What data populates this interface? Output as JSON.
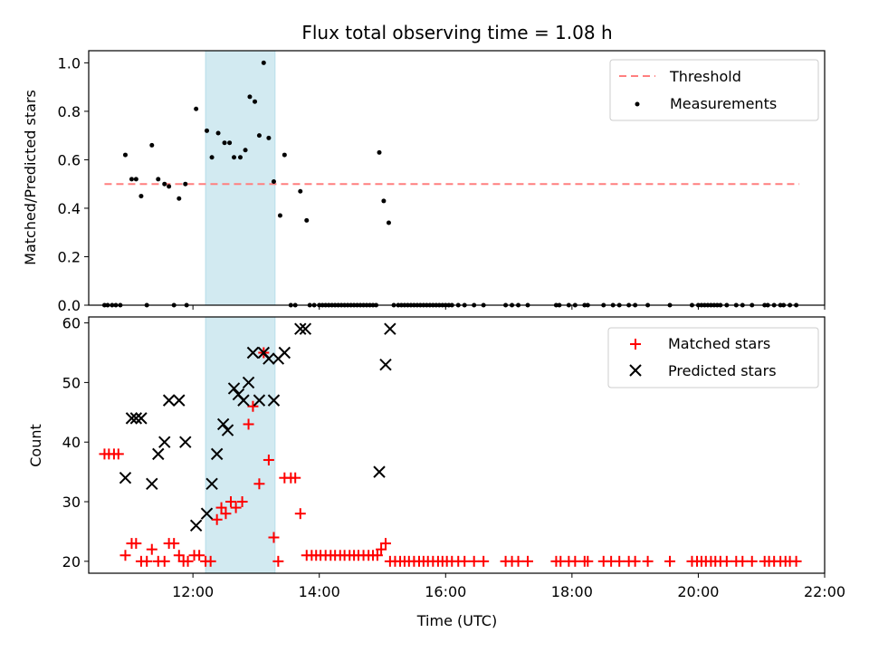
{
  "chart_data": [
    {
      "type": "scatter",
      "title": "Flux total observing time = 1.08 h",
      "xlabel": "",
      "ylabel": "Matched/Predicted stars",
      "xlim": [
        10.35,
        22.0
      ],
      "ylim": [
        0.0,
        1.05
      ],
      "yticks": [
        "0.0",
        "0.2",
        "0.4",
        "0.6",
        "0.8",
        "1.0"
      ],
      "highlight_span": [
        12.2,
        13.3
      ],
      "threshold": {
        "name": "Threshold",
        "y": 0.5,
        "x_range": [
          10.6,
          21.6
        ],
        "color": "#ff7f7f"
      },
      "measurements_name": "Measurements",
      "measurements": [
        [
          10.6,
          0
        ],
        [
          10.65,
          0
        ],
        [
          10.72,
          0
        ],
        [
          10.78,
          0
        ],
        [
          10.85,
          0
        ],
        [
          10.93,
          0.62
        ],
        [
          11.03,
          0.52
        ],
        [
          11.1,
          0.52
        ],
        [
          11.18,
          0.45
        ],
        [
          11.27,
          0
        ],
        [
          11.35,
          0.66
        ],
        [
          11.45,
          0.52
        ],
        [
          11.55,
          0.5
        ],
        [
          11.62,
          0.49
        ],
        [
          11.7,
          0
        ],
        [
          11.78,
          0.44
        ],
        [
          11.88,
          0.5
        ],
        [
          11.9,
          0
        ],
        [
          12.05,
          0.81
        ],
        [
          12.22,
          0.72
        ],
        [
          12.3,
          0.61
        ],
        [
          12.4,
          0.71
        ],
        [
          12.5,
          0.67
        ],
        [
          12.58,
          0.67
        ],
        [
          12.65,
          0.61
        ],
        [
          12.75,
          0.61
        ],
        [
          12.83,
          0.64
        ],
        [
          12.9,
          0.86
        ],
        [
          12.98,
          0.84
        ],
        [
          13.05,
          0.7
        ],
        [
          13.12,
          1.0
        ],
        [
          13.2,
          0.69
        ],
        [
          13.28,
          0.51
        ],
        [
          13.38,
          0.37
        ],
        [
          13.45,
          0.62
        ],
        [
          13.55,
          0
        ],
        [
          13.62,
          0
        ],
        [
          13.7,
          0.47
        ],
        [
          13.8,
          0.35
        ],
        [
          13.85,
          0
        ],
        [
          13.92,
          0
        ],
        [
          14.0,
          0
        ],
        [
          14.05,
          0
        ],
        [
          14.1,
          0
        ],
        [
          14.15,
          0
        ],
        [
          14.2,
          0
        ],
        [
          14.25,
          0
        ],
        [
          14.3,
          0
        ],
        [
          14.35,
          0
        ],
        [
          14.4,
          0
        ],
        [
          14.45,
          0
        ],
        [
          14.5,
          0
        ],
        [
          14.55,
          0
        ],
        [
          14.6,
          0
        ],
        [
          14.65,
          0
        ],
        [
          14.7,
          0
        ],
        [
          14.75,
          0
        ],
        [
          14.8,
          0
        ],
        [
          14.85,
          0
        ],
        [
          14.9,
          0
        ],
        [
          14.95,
          0.63
        ],
        [
          15.02,
          0.43
        ],
        [
          15.1,
          0.34
        ],
        [
          15.18,
          0
        ],
        [
          15.25,
          0
        ],
        [
          15.3,
          0
        ],
        [
          15.35,
          0
        ],
        [
          15.4,
          0
        ],
        [
          15.45,
          0
        ],
        [
          15.5,
          0
        ],
        [
          15.55,
          0
        ],
        [
          15.6,
          0
        ],
        [
          15.65,
          0
        ],
        [
          15.7,
          0
        ],
        [
          15.75,
          0
        ],
        [
          15.8,
          0
        ],
        [
          15.85,
          0
        ],
        [
          15.9,
          0
        ],
        [
          15.95,
          0
        ],
        [
          16.0,
          0
        ],
        [
          16.05,
          0
        ],
        [
          16.1,
          0
        ],
        [
          16.2,
          0
        ],
        [
          16.3,
          0
        ],
        [
          16.45,
          0
        ],
        [
          16.6,
          0
        ],
        [
          16.95,
          0
        ],
        [
          17.05,
          0
        ],
        [
          17.15,
          0
        ],
        [
          17.3,
          0
        ],
        [
          17.75,
          0
        ],
        [
          17.8,
          0
        ],
        [
          17.95,
          0
        ],
        [
          18.05,
          0
        ],
        [
          18.2,
          0
        ],
        [
          18.25,
          0
        ],
        [
          18.5,
          0
        ],
        [
          18.65,
          0
        ],
        [
          18.75,
          0
        ],
        [
          18.9,
          0
        ],
        [
          19.0,
          0
        ],
        [
          19.2,
          0
        ],
        [
          19.55,
          0
        ],
        [
          19.9,
          0
        ],
        [
          20.0,
          0
        ],
        [
          20.05,
          0
        ],
        [
          20.1,
          0
        ],
        [
          20.15,
          0
        ],
        [
          20.2,
          0
        ],
        [
          20.25,
          0
        ],
        [
          20.3,
          0
        ],
        [
          20.35,
          0
        ],
        [
          20.45,
          0
        ],
        [
          20.6,
          0
        ],
        [
          20.7,
          0
        ],
        [
          20.85,
          0
        ],
        [
          21.05,
          0
        ],
        [
          21.1,
          0
        ],
        [
          21.2,
          0
        ],
        [
          21.3,
          0
        ],
        [
          21.35,
          0
        ],
        [
          21.45,
          0
        ],
        [
          21.55,
          0
        ]
      ]
    },
    {
      "type": "scatter",
      "title": "",
      "xlabel": "Time (UTC)",
      "ylabel": "Count",
      "xlim": [
        10.35,
        22.0
      ],
      "ylim": [
        18.0,
        61.0
      ],
      "xticks": [
        [
          12,
          "12:00"
        ],
        [
          14,
          "14:00"
        ],
        [
          16,
          "16:00"
        ],
        [
          18,
          "18:00"
        ],
        [
          20,
          "20:00"
        ],
        [
          22,
          "22:00"
        ]
      ],
      "yticks": [
        "20",
        "30",
        "40",
        "50",
        "60"
      ],
      "highlight_span": [
        12.2,
        13.3
      ],
      "series": [
        {
          "name": "Matched stars",
          "marker": "plus",
          "color": "#ff0000",
          "points": [
            [
              10.6,
              38
            ],
            [
              10.67,
              38
            ],
            [
              10.75,
              38
            ],
            [
              10.82,
              38
            ],
            [
              10.93,
              21
            ],
            [
              11.03,
              23
            ],
            [
              11.1,
              23
            ],
            [
              11.18,
              20
            ],
            [
              11.27,
              20
            ],
            [
              11.35,
              22
            ],
            [
              11.45,
              20
            ],
            [
              11.55,
              20
            ],
            [
              11.62,
              23
            ],
            [
              11.7,
              23
            ],
            [
              11.78,
              21
            ],
            [
              11.85,
              20
            ],
            [
              11.92,
              20
            ],
            [
              12.02,
              21
            ],
            [
              12.1,
              21
            ],
            [
              12.2,
              20
            ],
            [
              12.28,
              20
            ],
            [
              12.38,
              27
            ],
            [
              12.45,
              29
            ],
            [
              12.52,
              28
            ],
            [
              12.6,
              30
            ],
            [
              12.68,
              29
            ],
            [
              12.78,
              30
            ],
            [
              12.88,
              43
            ],
            [
              12.95,
              46
            ],
            [
              13.05,
              33
            ],
            [
              13.12,
              55
            ],
            [
              13.2,
              37
            ],
            [
              13.28,
              24
            ],
            [
              13.35,
              20
            ],
            [
              13.45,
              34
            ],
            [
              13.55,
              34
            ],
            [
              13.62,
              34
            ],
            [
              13.7,
              28
            ],
            [
              13.8,
              21
            ],
            [
              13.88,
              21
            ],
            [
              13.95,
              21
            ],
            [
              14.02,
              21
            ],
            [
              14.1,
              21
            ],
            [
              14.18,
              21
            ],
            [
              14.25,
              21
            ],
            [
              14.33,
              21
            ],
            [
              14.4,
              21
            ],
            [
              14.48,
              21
            ],
            [
              14.55,
              21
            ],
            [
              14.62,
              21
            ],
            [
              14.7,
              21
            ],
            [
              14.78,
              21
            ],
            [
              14.85,
              21
            ],
            [
              14.92,
              21
            ],
            [
              14.98,
              22
            ],
            [
              15.05,
              23
            ],
            [
              15.12,
              20
            ],
            [
              15.2,
              20
            ],
            [
              15.28,
              20
            ],
            [
              15.35,
              20
            ],
            [
              15.42,
              20
            ],
            [
              15.5,
              20
            ],
            [
              15.58,
              20
            ],
            [
              15.65,
              20
            ],
            [
              15.72,
              20
            ],
            [
              15.8,
              20
            ],
            [
              15.88,
              20
            ],
            [
              15.95,
              20
            ],
            [
              16.02,
              20
            ],
            [
              16.1,
              20
            ],
            [
              16.2,
              20
            ],
            [
              16.3,
              20
            ],
            [
              16.45,
              20
            ],
            [
              16.6,
              20
            ],
            [
              16.95,
              20
            ],
            [
              17.05,
              20
            ],
            [
              17.15,
              20
            ],
            [
              17.3,
              20
            ],
            [
              17.75,
              20
            ],
            [
              17.82,
              20
            ],
            [
              17.95,
              20
            ],
            [
              18.05,
              20
            ],
            [
              18.2,
              20
            ],
            [
              18.25,
              20
            ],
            [
              18.5,
              20
            ],
            [
              18.62,
              20
            ],
            [
              18.75,
              20
            ],
            [
              18.9,
              20
            ],
            [
              19.0,
              20
            ],
            [
              19.2,
              20
            ],
            [
              19.55,
              20
            ],
            [
              19.9,
              20
            ],
            [
              19.98,
              20
            ],
            [
              20.05,
              20
            ],
            [
              20.12,
              20
            ],
            [
              20.2,
              20
            ],
            [
              20.27,
              20
            ],
            [
              20.35,
              20
            ],
            [
              20.45,
              20
            ],
            [
              20.6,
              20
            ],
            [
              20.7,
              20
            ],
            [
              20.85,
              20
            ],
            [
              21.05,
              20
            ],
            [
              21.12,
              20
            ],
            [
              21.2,
              20
            ],
            [
              21.3,
              20
            ],
            [
              21.38,
              20
            ],
            [
              21.45,
              20
            ],
            [
              21.55,
              20
            ]
          ]
        },
        {
          "name": "Predicted stars",
          "marker": "x",
          "color": "#000000",
          "points": [
            [
              10.93,
              34
            ],
            [
              11.03,
              44
            ],
            [
              11.1,
              44
            ],
            [
              11.18,
              44
            ],
            [
              11.35,
              33
            ],
            [
              11.45,
              38
            ],
            [
              11.55,
              40
            ],
            [
              11.62,
              47
            ],
            [
              11.78,
              47
            ],
            [
              11.88,
              40
            ],
            [
              12.05,
              26
            ],
            [
              12.22,
              28
            ],
            [
              12.3,
              33
            ],
            [
              12.38,
              38
            ],
            [
              12.48,
              43
            ],
            [
              12.55,
              42
            ],
            [
              12.65,
              49
            ],
            [
              12.72,
              48
            ],
            [
              12.8,
              47
            ],
            [
              12.88,
              50
            ],
            [
              12.95,
              55
            ],
            [
              13.05,
              47
            ],
            [
              13.12,
              55
            ],
            [
              13.2,
              54
            ],
            [
              13.28,
              47
            ],
            [
              13.35,
              54
            ],
            [
              13.45,
              55
            ],
            [
              13.7,
              59
            ],
            [
              13.78,
              59
            ],
            [
              14.95,
              35
            ],
            [
              15.05,
              53
            ],
            [
              15.12,
              59
            ]
          ]
        }
      ]
    }
  ]
}
